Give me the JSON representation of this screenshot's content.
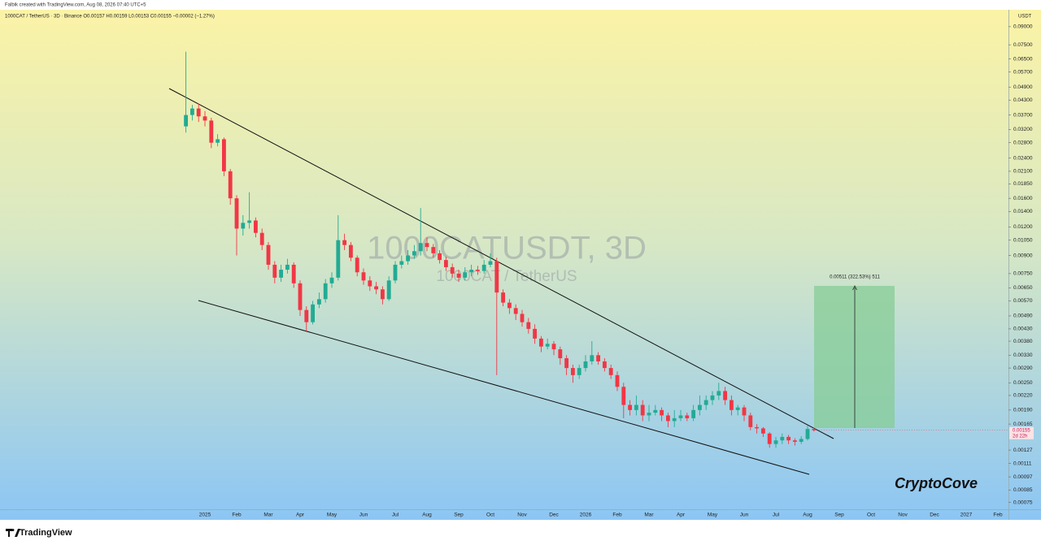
{
  "header": {
    "created": "Falbik created with TradingView.com, Aug 08, 2026 07:40 UTC+5",
    "symbol_line": "1000CAT / TetherUS · 3D · Binance  O0.00157 H0.00159 L0.00153 C0.00155 −0.00002 (−1.27%)"
  },
  "footer": {
    "brand": "TradingView"
  },
  "chart_data": {
    "type": "candlestick",
    "title": "1000CATUSDT, 3D",
    "subtitle": "1000CAT / TetherUS",
    "y_unit": "USDT",
    "watermark": "CryptoCove",
    "measure_label": "0.00511 (322.53%) 511",
    "last_price": {
      "value": 0.00155,
      "countdown": "2d 22h"
    },
    "up_color": "#22ab94",
    "down_color": "#f23645",
    "log_scale": true,
    "grid": false,
    "ylim": [
      0.0007,
      0.105
    ],
    "yticks": [
      {
        "value": 0.09,
        "label": "0.09000"
      },
      {
        "value": 0.075,
        "label": "0.07500"
      },
      {
        "value": 0.065,
        "label": "0.06500"
      },
      {
        "value": 0.057,
        "label": "0.05700"
      },
      {
        "value": 0.049,
        "label": "0.04900"
      },
      {
        "value": 0.043,
        "label": "0.04300"
      },
      {
        "value": 0.037,
        "label": "0.03700"
      },
      {
        "value": 0.032,
        "label": "0.03200"
      },
      {
        "value": 0.028,
        "label": "0.02800"
      },
      {
        "value": 0.024,
        "label": "0.02400"
      },
      {
        "value": 0.021,
        "label": "0.02100"
      },
      {
        "value": 0.0185,
        "label": "0.01850"
      },
      {
        "value": 0.016,
        "label": "0.01600"
      },
      {
        "value": 0.014,
        "label": "0.01400"
      },
      {
        "value": 0.012,
        "label": "0.01200"
      },
      {
        "value": 0.0105,
        "label": "0.01050"
      },
      {
        "value": 0.009,
        "label": "0.00900"
      },
      {
        "value": 0.0075,
        "label": "0.00750"
      },
      {
        "value": 0.0065,
        "label": "0.00650"
      },
      {
        "value": 0.0057,
        "label": "0.00570"
      },
      {
        "value": 0.0049,
        "label": "0.00490"
      },
      {
        "value": 0.0043,
        "label": "0.00430"
      },
      {
        "value": 0.0038,
        "label": "0.00380"
      },
      {
        "value": 0.0033,
        "label": "0.00330"
      },
      {
        "value": 0.0029,
        "label": "0.00290"
      },
      {
        "value": 0.0025,
        "label": "0.00250"
      },
      {
        "value": 0.0022,
        "label": "0.00220"
      },
      {
        "value": 0.0019,
        "label": "0.00190"
      },
      {
        "value": 0.00165,
        "label": "0.00165"
      },
      {
        "value": 0.00127,
        "label": "0.00127"
      },
      {
        "value": 0.00111,
        "label": "0.00111"
      },
      {
        "value": 0.00097,
        "label": "0.00097"
      },
      {
        "value": 0.00085,
        "label": "0.00085"
      },
      {
        "value": 0.00075,
        "label": "0.00075"
      }
    ],
    "categories": [
      null,
      null,
      null,
      "2025",
      null,
      null,
      null,
      null,
      "Feb",
      null,
      null,
      null,
      null,
      "Mar",
      null,
      null,
      null,
      null,
      "Apr",
      null,
      null,
      null,
      null,
      "May",
      null,
      null,
      null,
      null,
      "Jun",
      null,
      null,
      null,
      null,
      "Jul",
      null,
      null,
      null,
      null,
      "Aug",
      null,
      null,
      null,
      null,
      "Sep",
      null,
      null,
      null,
      null,
      "Oct",
      null,
      null,
      null,
      null,
      "Nov",
      null,
      null,
      null,
      null,
      "Dec",
      null,
      null,
      null,
      null,
      "2026",
      null,
      null,
      null,
      null,
      "Feb",
      null,
      null,
      null,
      null,
      "Mar",
      null,
      null,
      null,
      null,
      "Apr",
      null,
      null,
      null,
      null,
      "May",
      null,
      null,
      null,
      null,
      "Jun",
      null,
      null,
      null,
      null,
      "Jul",
      null,
      null,
      null,
      null,
      "Aug",
      null,
      null,
      null,
      null,
      "Sep",
      null,
      null,
      null,
      null,
      "Oct",
      null,
      null,
      null,
      null,
      "Nov",
      null,
      null,
      null,
      null,
      "Dec",
      null,
      null,
      null,
      null,
      "2027",
      null,
      null,
      null,
      null,
      "Feb"
    ],
    "open": [
      0.033,
      0.037,
      0.0395,
      0.0365,
      0.035,
      0.028,
      0.029,
      0.021,
      0.016,
      0.0118,
      0.0125,
      0.0128,
      0.0113,
      0.01,
      0.0082,
      0.0072,
      0.0078,
      0.0082,
      0.0068,
      0.0052,
      0.0046,
      0.0055,
      0.0058,
      0.0068,
      0.0072,
      0.0105,
      0.01,
      0.0088,
      0.0076,
      0.007,
      0.0066,
      0.0064,
      0.0058,
      0.007,
      0.0082,
      0.0085,
      0.009,
      0.0094,
      0.0102,
      0.0098,
      0.0092,
      0.0086,
      0.008,
      0.0075,
      0.0072,
      0.0076,
      0.0078,
      0.0077,
      0.0082,
      0.0085,
      0.0062,
      0.0056,
      0.0053,
      0.005,
      0.0046,
      0.0043,
      0.0039,
      0.0036,
      0.0037,
      0.0035,
      0.0032,
      0.0029,
      0.0027,
      0.0029,
      0.0031,
      0.0033,
      0.0031,
      0.0029,
      0.0027,
      0.0024,
      0.002,
      0.0019,
      0.002,
      0.0018,
      0.00185,
      0.0019,
      0.0018,
      0.0017,
      0.00175,
      0.0018,
      0.00175,
      0.0019,
      0.002,
      0.0021,
      0.0022,
      0.0023,
      0.0021,
      0.0019,
      0.00195,
      0.0018,
      0.0016,
      0.00158,
      0.0015,
      0.00135,
      0.0014,
      0.00145,
      0.0014,
      0.00138,
      0.00142,
      0.00157,
      null,
      null,
      null,
      null,
      null,
      null,
      null,
      null,
      null,
      null,
      null,
      null,
      null,
      null,
      null,
      null,
      null,
      null,
      null,
      null,
      null,
      null,
      null,
      null,
      null,
      null,
      null,
      null,
      null
    ],
    "high": [
      0.07,
      0.041,
      0.0415,
      0.0385,
      0.036,
      0.0305,
      0.0295,
      0.0215,
      0.0165,
      0.0135,
      0.017,
      0.0132,
      0.0118,
      0.0103,
      0.0085,
      0.0082,
      0.0087,
      0.0084,
      0.007,
      0.0054,
      0.0057,
      0.0062,
      0.0071,
      0.0076,
      0.0135,
      0.0112,
      0.0103,
      0.009,
      0.0079,
      0.0073,
      0.0069,
      0.0066,
      0.0073,
      0.0085,
      0.009,
      0.0095,
      0.01,
      0.0145,
      0.0108,
      0.0101,
      0.0095,
      0.0089,
      0.0083,
      0.0078,
      0.008,
      0.0082,
      0.0081,
      0.0086,
      0.0092,
      0.0088,
      0.0064,
      0.0058,
      0.0055,
      0.0052,
      0.0048,
      0.0045,
      0.004,
      0.0039,
      0.0038,
      0.0036,
      0.0033,
      0.003,
      0.003,
      0.0033,
      0.0038,
      0.0034,
      0.0032,
      0.003,
      0.0028,
      0.0025,
      0.0021,
      0.0022,
      0.0021,
      0.002,
      0.002,
      0.00195,
      0.00185,
      0.0019,
      0.0019,
      0.00185,
      0.002,
      0.0022,
      0.0022,
      0.0023,
      0.0025,
      0.0024,
      0.0022,
      0.002,
      0.002,
      0.00185,
      0.00165,
      0.0016,
      0.00152,
      0.00145,
      0.0015,
      0.00148,
      0.00143,
      0.00146,
      0.00162,
      0.00159,
      null,
      null,
      null,
      null,
      null,
      null,
      null,
      null,
      null,
      null,
      null,
      null,
      null,
      null,
      null,
      null,
      null,
      null,
      null,
      null,
      null,
      null,
      null,
      null,
      null,
      null,
      null,
      null,
      null
    ],
    "low": [
      0.031,
      0.035,
      0.0345,
      0.033,
      0.0265,
      0.027,
      0.02,
      0.015,
      0.009,
      0.011,
      0.0118,
      0.0108,
      0.0095,
      0.0078,
      0.0068,
      0.0069,
      0.0075,
      0.0065,
      0.0049,
      0.0042,
      0.0045,
      0.0053,
      0.0056,
      0.0065,
      0.007,
      0.0095,
      0.0085,
      0.0073,
      0.0067,
      0.0063,
      0.0061,
      0.0055,
      0.0057,
      0.0068,
      0.0079,
      0.0082,
      0.0087,
      0.009,
      0.0094,
      0.0088,
      0.0083,
      0.0077,
      0.0072,
      0.0069,
      0.007,
      0.0073,
      0.0074,
      0.0075,
      0.008,
      0.0027,
      0.0054,
      0.005,
      0.0047,
      0.0044,
      0.0041,
      0.0037,
      0.0034,
      0.0035,
      0.0033,
      0.003,
      0.0027,
      0.0025,
      0.0026,
      0.0028,
      0.003,
      0.003,
      0.0028,
      0.0026,
      0.0023,
      0.00175,
      0.0018,
      0.0018,
      0.0017,
      0.0017,
      0.0018,
      0.0017,
      0.0016,
      0.0016,
      0.0017,
      0.0017,
      0.0017,
      0.0018,
      0.0019,
      0.002,
      0.0021,
      0.002,
      0.0018,
      0.0018,
      0.0017,
      0.00155,
      0.0015,
      0.00145,
      0.0013,
      0.0013,
      0.00135,
      0.00135,
      0.00133,
      0.00135,
      0.0014,
      0.00153,
      null,
      null,
      null,
      null,
      null,
      null,
      null,
      null,
      null,
      null,
      null,
      null,
      null,
      null,
      null,
      null,
      null,
      null,
      null,
      null,
      null,
      null,
      null,
      null,
      null,
      null,
      null,
      null,
      null
    ],
    "close": [
      0.037,
      0.0395,
      0.0365,
      0.035,
      0.028,
      0.029,
      0.021,
      0.016,
      0.0118,
      0.0125,
      0.0128,
      0.0113,
      0.01,
      0.0082,
      0.0072,
      0.0078,
      0.0082,
      0.0068,
      0.0052,
      0.0046,
      0.0055,
      0.0058,
      0.0068,
      0.0072,
      0.0105,
      0.01,
      0.0088,
      0.0076,
      0.007,
      0.0066,
      0.0064,
      0.0058,
      0.007,
      0.0082,
      0.0085,
      0.009,
      0.0094,
      0.0102,
      0.0098,
      0.0092,
      0.0086,
      0.008,
      0.0075,
      0.0072,
      0.0076,
      0.0078,
      0.0077,
      0.0082,
      0.0085,
      0.0062,
      0.0056,
      0.0053,
      0.005,
      0.0046,
      0.0043,
      0.0039,
      0.0036,
      0.0037,
      0.0035,
      0.0032,
      0.0029,
      0.0027,
      0.0029,
      0.0031,
      0.0033,
      0.0031,
      0.0029,
      0.0027,
      0.0024,
      0.002,
      0.0019,
      0.002,
      0.0018,
      0.00185,
      0.0019,
      0.0018,
      0.0017,
      0.00175,
      0.0018,
      0.00175,
      0.0019,
      0.002,
      0.0021,
      0.0022,
      0.0023,
      0.0021,
      0.0019,
      0.00195,
      0.0018,
      0.0016,
      0.00158,
      0.0015,
      0.00135,
      0.0014,
      0.00145,
      0.0014,
      0.00138,
      0.00142,
      0.00157,
      0.00155,
      null,
      null,
      null,
      null,
      null,
      null,
      null,
      null,
      null,
      null,
      null,
      null,
      null,
      null,
      null,
      null,
      null,
      null,
      null,
      null,
      null,
      null,
      null,
      null,
      null,
      null,
      null,
      null,
      null
    ]
  }
}
